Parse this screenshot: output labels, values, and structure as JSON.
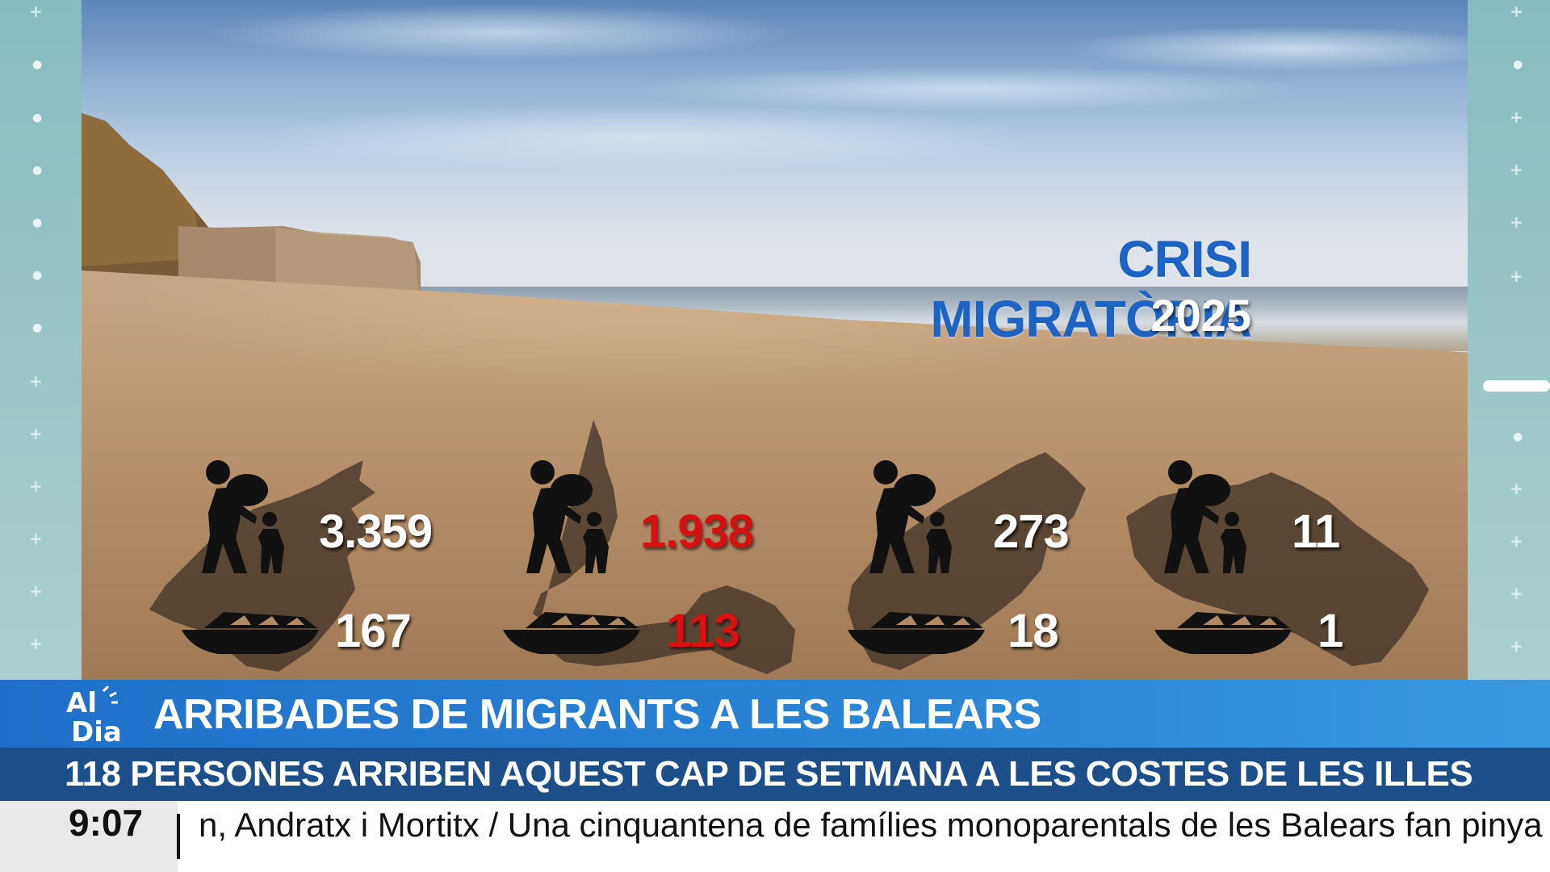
{
  "graphic": {
    "title": "CRISI MIGRATÒRIA",
    "year": "2025",
    "islands": [
      {
        "people": "3.359",
        "boats": "167",
        "highlight": false
      },
      {
        "people": "1.938",
        "boats": "113",
        "highlight": true
      },
      {
        "people": "273",
        "boats": "18",
        "highlight": false
      },
      {
        "people": "11",
        "boats": "1",
        "highlight": false
      }
    ]
  },
  "lower_third": {
    "logo_text": "Al Dia",
    "headline": "ARRIBADES DE MIGRANTS A LES BALEARS",
    "subheadline": "118 PERSONES ARRIBEN AQUEST CAP DE SETMANA A LES COSTES DE LES ILLES",
    "clock": "9:07",
    "ticker": "n, Andratx i Mortitx / Una cinquantena de famílies monoparentals de les Balears fan pinya a la Vic"
  },
  "colors": {
    "title_blue": "#1c63c4",
    "highlight_red": "#d81010",
    "bar_blue": "#2b86d6",
    "bar_navy": "#1c4f8a",
    "side_teal": "#8fc0c2"
  },
  "icons": {
    "people": "adult-child-migrant-icon",
    "boat": "boat-icon"
  }
}
